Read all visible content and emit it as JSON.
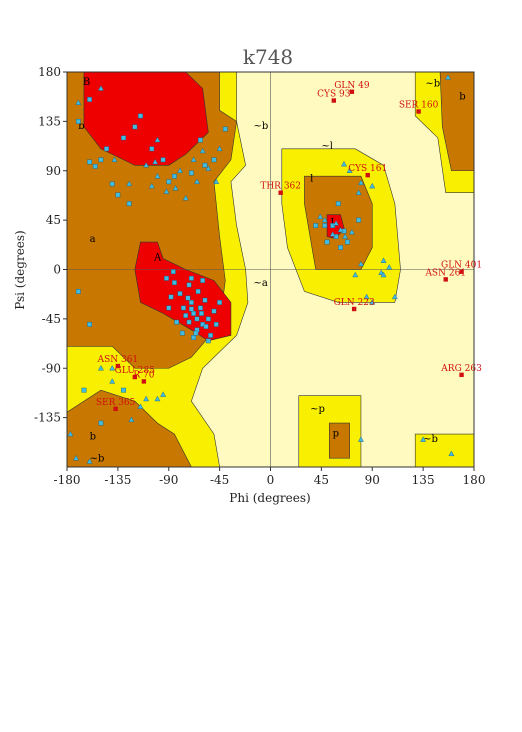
{
  "chart_data": {
    "type": "scatter",
    "title": "k748",
    "xlabel": "Phi (degrees)",
    "ylabel": "Psi (degrees)",
    "xlim": [
      -180,
      180
    ],
    "ylim": [
      -180,
      180
    ],
    "xticks": [
      -180,
      -135,
      -90,
      -45,
      0,
      45,
      90,
      135,
      180
    ],
    "yticks": [
      180,
      135,
      90,
      45,
      0,
      -45,
      -90,
      -135
    ],
    "colors": {
      "core": "#ee0000",
      "allowed": "#c87800",
      "generous": "#f8f000",
      "disallowed": "#fefac0",
      "residue": "#40bce0",
      "outlier": "#d01010"
    },
    "region_labels": [
      {
        "text": "B",
        "x": -166,
        "y": 168
      },
      {
        "text": "b",
        "x": -170,
        "y": 128
      },
      {
        "text": "~b",
        "x": -15,
        "y": 128
      },
      {
        "text": "~b",
        "x": 137,
        "y": 167
      },
      {
        "text": "b",
        "x": 167,
        "y": 155
      },
      {
        "text": "~l",
        "x": 45,
        "y": 110
      },
      {
        "text": "l",
        "x": 35,
        "y": 80
      },
      {
        "text": "L",
        "x": 53,
        "y": 40
      },
      {
        "text": "a",
        "x": -160,
        "y": 25
      },
      {
        "text": "A",
        "x": -103,
        "y": 8
      },
      {
        "text": "~a",
        "x": -15,
        "y": -15
      },
      {
        "text": "~p",
        "x": 35,
        "y": -130
      },
      {
        "text": "p",
        "x": 55,
        "y": -152
      },
      {
        "text": "~b",
        "x": 135,
        "y": -157
      },
      {
        "text": "b",
        "x": -160,
        "y": -155
      },
      {
        "text": "~b",
        "x": -160,
        "y": -175
      }
    ],
    "outliers": [
      {
        "label": "GLN 49",
        "x": 72,
        "y": 162
      },
      {
        "label": "CYS 93",
        "x": 56,
        "y": 154
      },
      {
        "label": "SER 160",
        "x": 131,
        "y": 144
      },
      {
        "label": "CYS 161",
        "x": 86,
        "y": 86
      },
      {
        "label": "THR 362",
        "x": 9,
        "y": 70
      },
      {
        "label": "GLN 401",
        "x": 169,
        "y": -2
      },
      {
        "label": "ASN 261",
        "x": 155,
        "y": -9
      },
      {
        "label": "GLN 223",
        "x": 74,
        "y": -36
      },
      {
        "label": "ASN 361",
        "x": -135,
        "y": -88
      },
      {
        "label": "GLU 285",
        "x": -120,
        "y": -98
      },
      {
        "label": "R 70",
        "x": -112,
        "y": -102
      },
      {
        "label": "ARG 263",
        "x": 169,
        "y": -96
      },
      {
        "label": "SER 365",
        "x": -137,
        "y": -127
      }
    ],
    "triangles": [
      [
        157,
        175
      ],
      [
        -170,
        152
      ],
      [
        -100,
        118
      ],
      [
        -68,
        100
      ],
      [
        -60,
        108
      ],
      [
        -138,
        100
      ],
      [
        -110,
        95
      ],
      [
        -125,
        78
      ],
      [
        -45,
        110
      ],
      [
        -55,
        92
      ],
      [
        -80,
        90
      ],
      [
        -100,
        85
      ],
      [
        -105,
        76
      ],
      [
        -92,
        71
      ],
      [
        -84,
        74
      ],
      [
        -75,
        65
      ],
      [
        -65,
        80
      ],
      [
        -48,
        80
      ],
      [
        -102,
        98
      ],
      [
        -150,
        165
      ],
      [
        65,
        96
      ],
      [
        70,
        90
      ],
      [
        80,
        79
      ],
      [
        90,
        76
      ],
      [
        78,
        70
      ],
      [
        48,
        45
      ],
      [
        58,
        42
      ],
      [
        62,
        36
      ],
      [
        66,
        30
      ],
      [
        55,
        32
      ],
      [
        44,
        48
      ],
      [
        72,
        34
      ],
      [
        110,
        -25
      ],
      [
        98,
        -3
      ],
      [
        100,
        8
      ],
      [
        105,
        2
      ],
      [
        100,
        -5
      ],
      [
        80,
        5
      ],
      [
        75,
        -5
      ],
      [
        85,
        -25
      ],
      [
        90,
        -30
      ],
      [
        -150,
        -90
      ],
      [
        -110,
        -118
      ],
      [
        -115,
        -125
      ],
      [
        -177,
        -150
      ],
      [
        -172,
        -172
      ],
      [
        -160,
        -175
      ],
      [
        -140,
        -90
      ],
      [
        -100,
        -118
      ],
      [
        80,
        -155
      ],
      [
        135,
        -155
      ],
      [
        160,
        -168
      ],
      [
        -123,
        -137
      ],
      [
        -95,
        -114
      ],
      [
        -140,
        -102
      ]
    ],
    "squares": [
      [
        -160,
        155
      ],
      [
        -170,
        135
      ],
      [
        -130,
        120
      ],
      [
        -120,
        130
      ],
      [
        -145,
        110
      ],
      [
        -140,
        78
      ],
      [
        -155,
        94
      ],
      [
        -160,
        98
      ],
      [
        -135,
        68
      ],
      [
        -125,
        60
      ],
      [
        -150,
        100
      ],
      [
        -115,
        140
      ],
      [
        -105,
        110
      ],
      [
        -95,
        100
      ],
      [
        -90,
        80
      ],
      [
        -85,
        85
      ],
      [
        -70,
        88
      ],
      [
        -62,
        118
      ],
      [
        -50,
        100
      ],
      [
        -58,
        95
      ],
      [
        -40,
        128
      ],
      [
        -62,
        -35
      ],
      [
        -68,
        -40
      ],
      [
        -55,
        -45
      ],
      [
        -60,
        -50
      ],
      [
        -70,
        -30
      ],
      [
        -75,
        -42
      ],
      [
        -65,
        -55
      ],
      [
        -58,
        -28
      ],
      [
        -80,
        -22
      ],
      [
        -85,
        -12
      ],
      [
        -88,
        -25
      ],
      [
        -50,
        -38
      ],
      [
        -72,
        -48
      ],
      [
        -64,
        -20
      ],
      [
        -53,
        -60
      ],
      [
        -78,
        -58
      ],
      [
        -90,
        -35
      ],
      [
        -45,
        -30
      ],
      [
        -68,
        -62
      ],
      [
        -83,
        -48
      ],
      [
        -57,
        -52
      ],
      [
        -65,
        -45
      ],
      [
        -70,
        -36
      ],
      [
        -73,
        -26
      ],
      [
        -61,
        -40
      ],
      [
        -66,
        -58
      ],
      [
        -55,
        -65
      ],
      [
        -48,
        -50
      ],
      [
        -77,
        -35
      ],
      [
        -92,
        -8
      ],
      [
        -86,
        -2
      ],
      [
        -72,
        -14
      ],
      [
        -60,
        -10
      ],
      [
        -70,
        -8
      ],
      [
        -160,
        -50
      ],
      [
        -170,
        -20
      ],
      [
        -165,
        -110
      ],
      [
        -150,
        -140
      ],
      [
        -130,
        -110
      ],
      [
        48,
        40
      ],
      [
        58,
        30
      ],
      [
        68,
        25
      ],
      [
        62,
        20
      ],
      [
        50,
        25
      ],
      [
        40,
        40
      ],
      [
        65,
        35
      ],
      [
        78,
        45
      ],
      [
        60,
        60
      ],
      [
        55,
        40
      ]
    ]
  }
}
